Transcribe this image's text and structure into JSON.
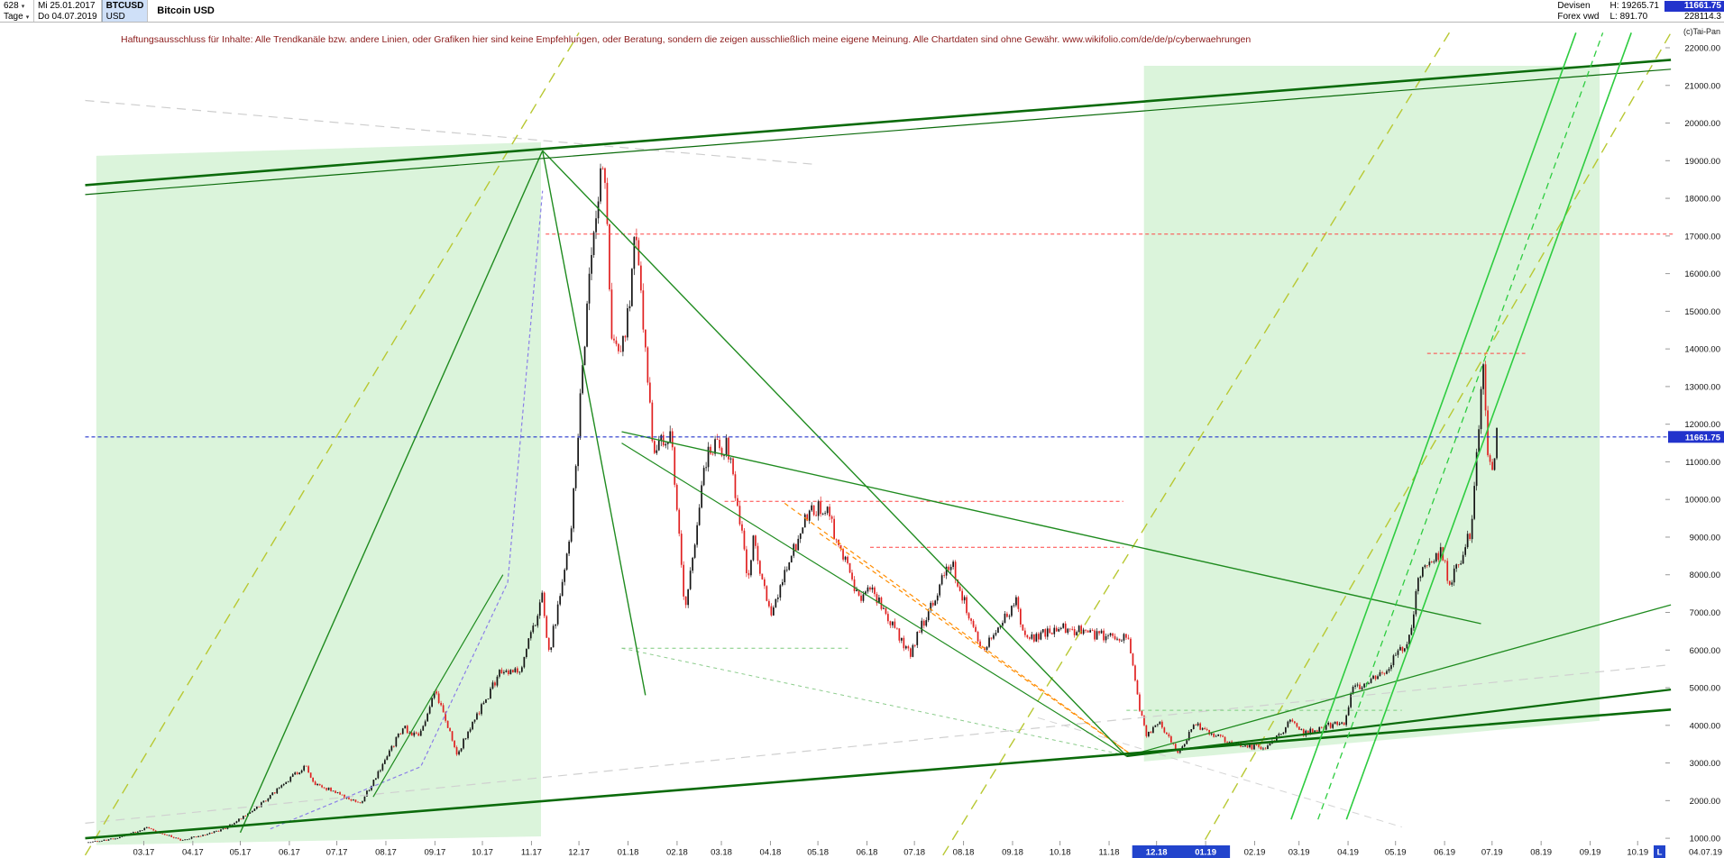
{
  "header": {
    "bars_count": "628",
    "period": "Tage",
    "date_from": "Mi 25.01.2017",
    "date_to": "Do 04.07.2019",
    "symbol": "BTCUSD",
    "currency": "USD",
    "title": "Bitcoin USD",
    "category_line1": "Devisen",
    "category_line2": "Forex vwd",
    "high_label": "H: 19265.71",
    "low_label": "L: 891.70",
    "last_price": "11661.75",
    "volume": "228114.3",
    "copyright": "(c)Tai-Pan"
  },
  "disclaimer": "Haftungsausschluss für Inhalte: Alle Trendkanäle bzw. andere Linien, oder Grafiken hier sind keine Empfehlungen, oder Beratung, sondern die zeigen ausschließlich meine eigene Meinung. Alle Chartdaten sind ohne Gewähr.  www.wikifolio.com/de/de/p/cyberwaehrungen",
  "chart_data": {
    "type": "candlestick",
    "title": "Bitcoin USD",
    "symbol": "BTCUSD",
    "period": "daily",
    "bars_count": 628,
    "date_from": "2017-01-25",
    "date_to": "2019-07-04",
    "high": 19265.71,
    "low": 891.7,
    "last": 11661.75,
    "colors": {
      "up": "#151515",
      "down": "#e02020",
      "accent_blue": "#2233cc",
      "highlight_blue": "#2244cc",
      "channel_green": "#0b6b0b",
      "region_green": "rgba(125,215,125,0.28)"
    },
    "y_axis": {
      "min": 1000,
      "max": 22000,
      "step": 1000,
      "labels": [
        "22000.00",
        "21000.00",
        "20000.00",
        "19000.00",
        "18000.00",
        "17000.00",
        "16000.00",
        "15000.00",
        "14000.00",
        "13000.00",
        "12000.00",
        "11000.00",
        "10000.00",
        "9000.00",
        "8000.00",
        "7000.00",
        "6000.00",
        "5000.00",
        "4000.00",
        "3000.00",
        "2000.00",
        "1000.00"
      ]
    },
    "x_axis": {
      "months": [
        "03.17",
        "04.17",
        "05.17",
        "06.17",
        "07.17",
        "08.17",
        "09.17",
        "10.17",
        "11.17",
        "12.17",
        "01.18",
        "02.18",
        "03.18",
        "04.18",
        "05.18",
        "06.18",
        "07.18",
        "08.18",
        "09.18",
        "10.18",
        "11.18",
        "12.18",
        "01.19",
        "02.19",
        "03.19",
        "04.19",
        "05.19",
        "06.19",
        "07.19",
        "08.19",
        "09.19",
        "10.19"
      ],
      "highlighted": [
        "12.18",
        "01.19"
      ],
      "end_marker": "L",
      "end_label": "04.07.19"
    },
    "price_path": [
      {
        "d": "2017-01-25",
        "p": 895
      },
      {
        "d": "2017-02-10",
        "p": 985
      },
      {
        "d": "2017-03-03",
        "p": 1270
      },
      {
        "d": "2017-03-25",
        "p": 950
      },
      {
        "d": "2017-04-20",
        "p": 1230
      },
      {
        "d": "2017-05-10",
        "p": 1760
      },
      {
        "d": "2017-05-25",
        "p": 2320
      },
      {
        "d": "2017-06-12",
        "p": 2950
      },
      {
        "d": "2017-06-15",
        "p": 2500
      },
      {
        "d": "2017-07-16",
        "p": 1915
      },
      {
        "d": "2017-08-12",
        "p": 3950
      },
      {
        "d": "2017-08-22",
        "p": 3650
      },
      {
        "d": "2017-09-01",
        "p": 4900
      },
      {
        "d": "2017-09-15",
        "p": 3250
      },
      {
        "d": "2017-10-12",
        "p": 5400
      },
      {
        "d": "2017-10-25",
        "p": 5500
      },
      {
        "d": "2017-11-08",
        "p": 7400
      },
      {
        "d": "2017-11-12",
        "p": 5900
      },
      {
        "d": "2017-11-25",
        "p": 8750
      },
      {
        "d": "2017-12-08",
        "p": 16000
      },
      {
        "d": "2017-12-17",
        "p": 19265
      },
      {
        "d": "2017-12-22",
        "p": 13900
      },
      {
        "d": "2017-12-30",
        "p": 14100
      },
      {
        "d": "2018-01-06",
        "p": 17100
      },
      {
        "d": "2018-01-17",
        "p": 11200
      },
      {
        "d": "2018-01-28",
        "p": 11800
      },
      {
        "d": "2018-02-06",
        "p": 6950
      },
      {
        "d": "2018-02-20",
        "p": 11300
      },
      {
        "d": "2018-03-05",
        "p": 11450
      },
      {
        "d": "2018-03-18",
        "p": 7900
      },
      {
        "d": "2018-03-21",
        "p": 8900
      },
      {
        "d": "2018-04-01",
        "p": 6950
      },
      {
        "d": "2018-04-24",
        "p": 9650
      },
      {
        "d": "2018-05-05",
        "p": 9850
      },
      {
        "d": "2018-05-28",
        "p": 7200
      },
      {
        "d": "2018-06-03",
        "p": 7700
      },
      {
        "d": "2018-06-28",
        "p": 5900
      },
      {
        "d": "2018-07-24",
        "p": 8400
      },
      {
        "d": "2018-08-10",
        "p": 6200
      },
      {
        "d": "2018-08-14",
        "p": 6100
      },
      {
        "d": "2018-09-04",
        "p": 7300
      },
      {
        "d": "2018-09-08",
        "p": 6250
      },
      {
        "d": "2018-10-01",
        "p": 6600
      },
      {
        "d": "2018-11-01",
        "p": 6350
      },
      {
        "d": "2018-11-13",
        "p": 6350
      },
      {
        "d": "2018-11-20",
        "p": 4500
      },
      {
        "d": "2018-11-25",
        "p": 3700
      },
      {
        "d": "2018-12-03",
        "p": 4100
      },
      {
        "d": "2018-12-15",
        "p": 3200
      },
      {
        "d": "2018-12-24",
        "p": 4050
      },
      {
        "d": "2019-01-10",
        "p": 3650
      },
      {
        "d": "2019-01-28",
        "p": 3450
      },
      {
        "d": "2019-02-08",
        "p": 3400
      },
      {
        "d": "2019-02-24",
        "p": 4100
      },
      {
        "d": "2019-03-04",
        "p": 3800
      },
      {
        "d": "2019-03-30",
        "p": 4100
      },
      {
        "d": "2019-04-03",
        "p": 4900
      },
      {
        "d": "2019-04-25",
        "p": 5450
      },
      {
        "d": "2019-05-10",
        "p": 6350
      },
      {
        "d": "2019-05-16",
        "p": 8000
      },
      {
        "d": "2019-05-30",
        "p": 8650
      },
      {
        "d": "2019-06-04",
        "p": 7700
      },
      {
        "d": "2019-06-18",
        "p": 9150
      },
      {
        "d": "2019-06-26",
        "p": 13800
      },
      {
        "d": "2019-06-28",
        "p": 11200
      },
      {
        "d": "2019-07-01",
        "p": 10800
      },
      {
        "d": "2019-07-02",
        "p": 10620
      },
      {
        "d": "2019-07-04",
        "p": 11661.75
      }
    ],
    "overlays": [
      {
        "name": "bull-channel-region-2017",
        "kind": "region",
        "color": "rgba(125,215,125,0.28)",
        "pts": [
          [
            5,
            19130
          ],
          [
            286,
            19490
          ],
          [
            286,
            1050
          ],
          [
            5,
            820
          ]
        ]
      },
      {
        "name": "bull-channel-region-2019",
        "kind": "region",
        "color": "rgba(125,215,125,0.28)",
        "pts": [
          [
            667,
            21520
          ],
          [
            955,
            21520
          ],
          [
            955,
            4120
          ],
          [
            667,
            3040
          ]
        ]
      },
      {
        "name": "old-trendline-top",
        "kind": "line",
        "color": "#cdcdcd",
        "w": 1.2,
        "dash": "10,7",
        "pts": [
          [
            -2,
            20600
          ],
          [
            460,
            18900
          ]
        ]
      },
      {
        "name": "old-trendline-bottom",
        "kind": "line",
        "color": "#d0d0d0",
        "w": 1.2,
        "dash": "10,7",
        "pts": [
          [
            -2,
            1400
          ],
          [
            997,
            5600
          ]
        ]
      },
      {
        "name": "old-trendline-low-right",
        "kind": "line",
        "color": "#d4d4d4",
        "w": 1,
        "dash": "8,6",
        "pts": [
          [
            600,
            4200
          ],
          [
            830,
            1300
          ]
        ]
      },
      {
        "name": "fan-line-yellow-left",
        "kind": "line",
        "color": "#b8c832",
        "w": 1.4,
        "dash": "12,8",
        "pts": [
          [
            -2,
            550
          ],
          [
            310,
            22400
          ]
        ]
      },
      {
        "name": "fan-line-yellow-mid",
        "kind": "line",
        "color": "#b8c832",
        "w": 1.4,
        "dash": "12,8",
        "pts": [
          [
            540,
            550
          ],
          [
            860,
            22400
          ]
        ]
      },
      {
        "name": "fan-line-yellow-right",
        "kind": "line",
        "color": "#b8c832",
        "w": 1.4,
        "dash": "12,8",
        "pts": [
          [
            700,
            550
          ],
          [
            1000,
            22400
          ]
        ]
      },
      {
        "name": "parabolic-support-2017",
        "kind": "line",
        "color": "#8b7fe8",
        "w": 1.2,
        "dash": "4,3",
        "pts": [
          [
            115,
            1250
          ],
          [
            210,
            2900
          ],
          [
            265,
            7800
          ],
          [
            287,
            18200
          ]
        ]
      },
      {
        "name": "minor-support-6000",
        "kind": "line",
        "color": "#7ccc7c",
        "w": 1,
        "dash": "4,4",
        "pts": [
          [
            337,
            6050
          ],
          [
            480,
            6050
          ]
        ]
      },
      {
        "name": "minor-support-4400",
        "kind": "line",
        "color": "#7ccc7c",
        "w": 1,
        "dash": "4,4",
        "pts": [
          [
            656,
            4400
          ],
          [
            830,
            4400
          ]
        ]
      },
      {
        "name": "minor-decline-line",
        "kind": "line",
        "color": "#8ccc8c",
        "w": 1,
        "dash": "4,4",
        "pts": [
          [
            337,
            6050
          ],
          [
            656,
            3200
          ]
        ]
      },
      {
        "name": "orange-downtrend-1",
        "kind": "line",
        "color": "#ff8c00",
        "w": 1.2,
        "dash": "5,4",
        "pts": [
          [
            440,
            9900
          ],
          [
            658,
            3250
          ]
        ]
      },
      {
        "name": "orange-downtrend-2",
        "kind": "line",
        "color": "#ff8c00",
        "w": 1.2,
        "dash": "5,4",
        "pts": [
          [
            462,
            9100
          ],
          [
            658,
            3250
          ]
        ]
      },
      {
        "name": "resistance-17050",
        "kind": "line",
        "color": "#ff4444",
        "w": 1,
        "dash": "4,3",
        "pts": [
          [
            289,
            17050
          ],
          [
            1002,
            17050
          ]
        ]
      },
      {
        "name": "resistance-13880",
        "kind": "line",
        "color": "#ff4444",
        "w": 1,
        "dash": "4,3",
        "pts": [
          [
            846,
            13880
          ],
          [
            908,
            13880
          ]
        ]
      },
      {
        "name": "resistance-9950",
        "kind": "line",
        "color": "#ff4444",
        "w": 1,
        "dash": "4,3",
        "pts": [
          [
            402,
            9950
          ],
          [
            654,
            9950
          ]
        ]
      },
      {
        "name": "resistance-8730",
        "kind": "line",
        "color": "#ff4444",
        "w": 1,
        "dash": "4,3",
        "pts": [
          [
            494,
            8730
          ],
          [
            654,
            8730
          ]
        ]
      },
      {
        "name": "downtrend-peak-to-low",
        "kind": "line",
        "color": "#1f8b1f",
        "w": 1.4,
        "pts": [
          [
            287,
            19265
          ],
          [
            656,
            3180
          ]
        ]
      },
      {
        "name": "downtrend-steep-from-peak",
        "kind": "line",
        "color": "#1f8b1f",
        "w": 1.4,
        "pts": [
          [
            287,
            19265
          ],
          [
            352,
            4800
          ]
        ]
      },
      {
        "name": "downtrend-resistance-2018",
        "kind": "line",
        "color": "#1f8b1f",
        "w": 1.4,
        "pts": [
          [
            337,
            11800
          ],
          [
            880,
            6700
          ]
        ]
      },
      {
        "name": "triangle-lower-line",
        "kind": "line",
        "color": "#1f8b1f",
        "w": 1.2,
        "pts": [
          [
            337,
            11500
          ],
          [
            656,
            3180
          ]
        ]
      },
      {
        "name": "rally-2017-support",
        "kind": "line",
        "color": "#1f8b1f",
        "w": 1.4,
        "pts": [
          [
            96,
            1150
          ],
          [
            287,
            19265
          ]
        ]
      },
      {
        "name": "rally-2017-parallel",
        "kind": "line",
        "color": "#1f8b1f",
        "w": 1.2,
        "pts": [
          [
            180,
            2100
          ],
          [
            262,
            8000
          ]
        ]
      },
      {
        "name": "rally-2019-support",
        "kind": "line",
        "color": "#1f8b1f",
        "w": 1.3,
        "pts": [
          [
            656,
            3180
          ],
          [
            1000,
            7200
          ]
        ]
      },
      {
        "name": "channel-top-main",
        "kind": "line",
        "color": "#0b6b0b",
        "w": 2.6,
        "pts": [
          [
            -2,
            18350
          ],
          [
            1000,
            21680
          ]
        ]
      },
      {
        "name": "channel-top-parallel",
        "kind": "line",
        "color": "#0b6b0b",
        "w": 1.2,
        "pts": [
          [
            -2,
            18100
          ],
          [
            1000,
            21430
          ]
        ]
      },
      {
        "name": "support-long-main",
        "kind": "line",
        "color": "#0b6b0b",
        "w": 2.6,
        "pts": [
          [
            -2,
            1000
          ],
          [
            1000,
            4420
          ]
        ]
      },
      {
        "name": "support-right-rising",
        "kind": "line",
        "color": "#0b6b0b",
        "w": 2.2,
        "pts": [
          [
            656,
            3180
          ],
          [
            1000,
            4950
          ]
        ]
      },
      {
        "name": "steep-2019-channel-1",
        "kind": "line",
        "color": "#2ecc40",
        "w": 1.6,
        "pts": [
          [
            760,
            1500
          ],
          [
            940,
            22400
          ]
        ]
      },
      {
        "name": "steep-2019-channel-2",
        "kind": "line",
        "color": "#2ecc40",
        "w": 1.6,
        "pts": [
          [
            795,
            1500
          ],
          [
            975,
            22400
          ]
        ]
      },
      {
        "name": "steep-2019-dashed",
        "kind": "line",
        "color": "#2ecc40",
        "w": 1.3,
        "dash": "7,5",
        "pts": [
          [
            777,
            1500
          ],
          [
            957,
            22400
          ]
        ]
      },
      {
        "name": "current-price-line",
        "kind": "line",
        "color": "#2233cc",
        "w": 1.1,
        "dash": "4,3",
        "pts": [
          [
            -2,
            11661.75
          ],
          [
            1000,
            11661.75
          ]
        ]
      }
    ]
  }
}
